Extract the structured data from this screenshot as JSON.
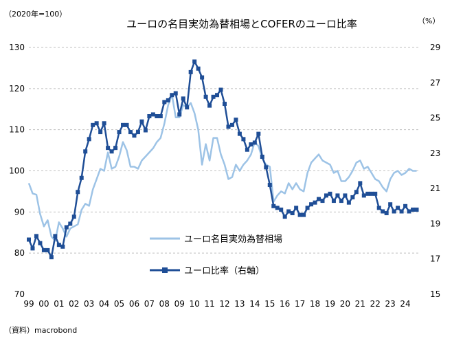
{
  "chart_data": {
    "type": "line",
    "title": "ユーロの名目実効為替相場とCOFERのユーロ比率",
    "left_unit": "（2020年=100）",
    "right_unit": "（%）",
    "source": "（資料）macrobond",
    "x_tick_labels": [
      "99",
      "00",
      "01",
      "02",
      "03",
      "04",
      "05",
      "06",
      "07",
      "08",
      "09",
      "10",
      "11",
      "12",
      "13",
      "14",
      "15",
      "16",
      "17",
      "18",
      "19",
      "20",
      "21",
      "22",
      "23",
      "24"
    ],
    "x_start": 1999.0,
    "x_end": 2025.0,
    "y_left": {
      "min": 70,
      "max": 130,
      "step": 10,
      "ticks": [
        "70",
        "80",
        "90",
        "100",
        "110",
        "120",
        "130"
      ]
    },
    "y_right": {
      "min": 15,
      "max": 29,
      "step": 2,
      "ticks": [
        "15",
        "17",
        "19",
        "21",
        "23",
        "25",
        "27",
        "29"
      ]
    },
    "colors": {
      "neer": "#9dc3e6",
      "cofer": "#1f4e96",
      "grid": "#bfbfbf"
    },
    "series": [
      {
        "name": "ユーロ名目実効為替相場",
        "axis": "left",
        "marker": "none",
        "points": [
          [
            1999.0,
            97
          ],
          [
            1999.25,
            94.5
          ],
          [
            1999.5,
            94.2
          ],
          [
            1999.75,
            89.5
          ],
          [
            2000.0,
            86.5
          ],
          [
            2000.25,
            88
          ],
          [
            2000.5,
            84
          ],
          [
            2000.75,
            83
          ],
          [
            2001.0,
            87.5
          ],
          [
            2001.25,
            86
          ],
          [
            2001.5,
            84
          ],
          [
            2001.75,
            86
          ],
          [
            2002.0,
            86.5
          ],
          [
            2002.25,
            87
          ],
          [
            2002.5,
            90.5
          ],
          [
            2002.75,
            92
          ],
          [
            2003.0,
            91.5
          ],
          [
            2003.25,
            95.5
          ],
          [
            2003.5,
            98
          ],
          [
            2003.75,
            100.5
          ],
          [
            2004.0,
            100
          ],
          [
            2004.25,
            104.5
          ],
          [
            2004.5,
            100.5
          ],
          [
            2004.75,
            101
          ],
          [
            2005.0,
            103.5
          ],
          [
            2005.25,
            107
          ],
          [
            2005.5,
            105
          ],
          [
            2005.75,
            101
          ],
          [
            2006.0,
            101
          ],
          [
            2006.25,
            100.5
          ],
          [
            2006.5,
            102.5
          ],
          [
            2006.75,
            103.5
          ],
          [
            2007.0,
            104.5
          ],
          [
            2007.25,
            105.5
          ],
          [
            2007.5,
            107
          ],
          [
            2007.75,
            108
          ],
          [
            2008.0,
            111.5
          ],
          [
            2008.25,
            116
          ],
          [
            2008.5,
            118.5
          ],
          [
            2008.75,
            113
          ],
          [
            2009.0,
            113
          ],
          [
            2009.25,
            116
          ],
          [
            2009.5,
            115.5
          ],
          [
            2009.75,
            116.5
          ],
          [
            2010.0,
            114
          ],
          [
            2010.25,
            110
          ],
          [
            2010.5,
            101.5
          ],
          [
            2010.75,
            106.5
          ],
          [
            2011.0,
            102.5
          ],
          [
            2011.25,
            108
          ],
          [
            2011.5,
            108
          ],
          [
            2011.75,
            104
          ],
          [
            2012.0,
            101.5
          ],
          [
            2012.25,
            98
          ],
          [
            2012.5,
            98.5
          ],
          [
            2012.75,
            101.5
          ],
          [
            2013.0,
            100
          ],
          [
            2013.25,
            101.5
          ],
          [
            2013.5,
            102.5
          ],
          [
            2013.75,
            104
          ],
          [
            2014.0,
            107
          ],
          [
            2014.25,
            106
          ],
          [
            2014.5,
            103
          ],
          [
            2014.75,
            101.5
          ],
          [
            2015.0,
            101
          ],
          [
            2015.25,
            92.5
          ],
          [
            2015.5,
            94
          ],
          [
            2015.75,
            95
          ],
          [
            2016.0,
            94.5
          ],
          [
            2016.25,
            97
          ],
          [
            2016.5,
            95.5
          ],
          [
            2016.75,
            97
          ],
          [
            2017.0,
            95.5
          ],
          [
            2017.25,
            95
          ],
          [
            2017.5,
            99.5
          ],
          [
            2017.75,
            102
          ],
          [
            2018.0,
            103
          ],
          [
            2018.25,
            104
          ],
          [
            2018.5,
            102.5
          ],
          [
            2018.75,
            102
          ],
          [
            2019.0,
            101.5
          ],
          [
            2019.25,
            99.5
          ],
          [
            2019.5,
            100
          ],
          [
            2019.75,
            97.5
          ],
          [
            2020.0,
            97.5
          ],
          [
            2020.25,
            98.5
          ],
          [
            2020.5,
            100
          ],
          [
            2020.75,
            102
          ],
          [
            2021.0,
            102.5
          ],
          [
            2021.25,
            100.5
          ],
          [
            2021.5,
            101
          ],
          [
            2021.75,
            99.5
          ],
          [
            2022.0,
            98
          ],
          [
            2022.25,
            97.5
          ],
          [
            2022.5,
            96
          ],
          [
            2022.75,
            95
          ],
          [
            2023.0,
            98
          ],
          [
            2023.25,
            99.5
          ],
          [
            2023.5,
            100
          ],
          [
            2023.75,
            99
          ],
          [
            2024.0,
            99.5
          ],
          [
            2024.25,
            100.5
          ],
          [
            2024.5,
            100
          ],
          [
            2024.75,
            100
          ]
        ]
      },
      {
        "name": "ユーロ比率（右軸）",
        "axis": "right",
        "marker": "square",
        "points": [
          [
            1999.0,
            18.1
          ],
          [
            1999.25,
            17.6
          ],
          [
            1999.5,
            18.3
          ],
          [
            1999.75,
            17.9
          ],
          [
            2000.0,
            17.5
          ],
          [
            2000.25,
            17.5
          ],
          [
            2000.5,
            17.1
          ],
          [
            2000.75,
            18.3
          ],
          [
            2001.0,
            17.8
          ],
          [
            2001.25,
            17.7
          ],
          [
            2001.5,
            18.8
          ],
          [
            2001.75,
            19.0
          ],
          [
            2002.0,
            19.4
          ],
          [
            2002.25,
            20.8
          ],
          [
            2002.5,
            21.6
          ],
          [
            2002.75,
            23.1
          ],
          [
            2003.0,
            23.8
          ],
          [
            2003.25,
            24.6
          ],
          [
            2003.5,
            24.7
          ],
          [
            2003.75,
            24.2
          ],
          [
            2004.0,
            24.7
          ],
          [
            2004.25,
            23.3
          ],
          [
            2004.5,
            23.1
          ],
          [
            2004.75,
            23.3
          ],
          [
            2005.0,
            24.2
          ],
          [
            2005.25,
            24.6
          ],
          [
            2005.5,
            24.6
          ],
          [
            2005.75,
            24.2
          ],
          [
            2006.0,
            24.0
          ],
          [
            2006.25,
            24.2
          ],
          [
            2006.5,
            24.8
          ],
          [
            2006.75,
            24.3
          ],
          [
            2007.0,
            25.1
          ],
          [
            2007.25,
            25.2
          ],
          [
            2007.5,
            25.1
          ],
          [
            2007.75,
            25.1
          ],
          [
            2008.0,
            25.9
          ],
          [
            2008.25,
            26.0
          ],
          [
            2008.5,
            26.3
          ],
          [
            2008.75,
            26.4
          ],
          [
            2009.0,
            25.2
          ],
          [
            2009.25,
            26.1
          ],
          [
            2009.5,
            25.6
          ],
          [
            2009.75,
            27.6
          ],
          [
            2010.0,
            28.2
          ],
          [
            2010.25,
            27.8
          ],
          [
            2010.5,
            27.3
          ],
          [
            2010.75,
            26.2
          ],
          [
            2011.0,
            25.7
          ],
          [
            2011.25,
            26.2
          ],
          [
            2011.5,
            26.3
          ],
          [
            2011.75,
            26.6
          ],
          [
            2012.0,
            25.8
          ],
          [
            2012.25,
            24.5
          ],
          [
            2012.5,
            24.6
          ],
          [
            2012.75,
            24.9
          ],
          [
            2013.0,
            24.1
          ],
          [
            2013.25,
            23.8
          ],
          [
            2013.5,
            23.2
          ],
          [
            2013.75,
            23.5
          ],
          [
            2014.0,
            23.6
          ],
          [
            2014.25,
            24.1
          ],
          [
            2014.5,
            22.8
          ],
          [
            2014.75,
            22.2
          ],
          [
            2015.0,
            21.2
          ],
          [
            2015.25,
            20.0
          ],
          [
            2015.5,
            19.9
          ],
          [
            2015.75,
            19.8
          ],
          [
            2016.0,
            19.4
          ],
          [
            2016.25,
            19.7
          ],
          [
            2016.5,
            19.6
          ],
          [
            2016.75,
            19.9
          ],
          [
            2017.0,
            19.5
          ],
          [
            2017.25,
            19.5
          ],
          [
            2017.5,
            19.9
          ],
          [
            2017.75,
            20.1
          ],
          [
            2018.0,
            20.2
          ],
          [
            2018.25,
            20.4
          ],
          [
            2018.5,
            20.3
          ],
          [
            2018.75,
            20.6
          ],
          [
            2019.0,
            20.7
          ],
          [
            2019.25,
            20.3
          ],
          [
            2019.5,
            20.6
          ],
          [
            2019.75,
            20.3
          ],
          [
            2020.0,
            20.6
          ],
          [
            2020.25,
            20.2
          ],
          [
            2020.5,
            20.5
          ],
          [
            2020.75,
            20.8
          ],
          [
            2021.0,
            21.3
          ],
          [
            2021.25,
            20.6
          ],
          [
            2021.5,
            20.7
          ],
          [
            2021.75,
            20.7
          ],
          [
            2022.0,
            20.7
          ],
          [
            2022.25,
            19.9
          ],
          [
            2022.5,
            19.7
          ],
          [
            2022.75,
            19.6
          ],
          [
            2023.0,
            20.1
          ],
          [
            2023.25,
            19.7
          ],
          [
            2023.5,
            19.9
          ],
          [
            2023.75,
            19.7
          ],
          [
            2024.0,
            20.0
          ],
          [
            2024.25,
            19.7
          ],
          [
            2024.5,
            19.8
          ],
          [
            2024.75,
            19.8
          ]
        ]
      }
    ]
  }
}
